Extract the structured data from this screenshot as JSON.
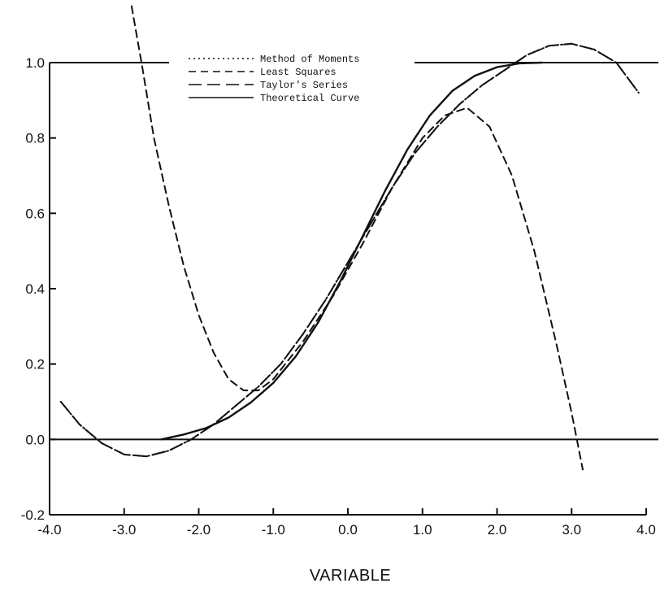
{
  "chart_data": {
    "type": "line",
    "title": "",
    "xlabel": "VARIABLE",
    "ylabel": "",
    "xlim": [
      -4.0,
      4.0
    ],
    "ylim": [
      -0.2,
      1.0
    ],
    "grid": false,
    "legend_position": "top-center",
    "x_ticks": [
      -4.0,
      -3.0,
      -2.0,
      -1.0,
      0.0,
      1.0,
      2.0,
      3.0,
      4.0
    ],
    "x_tick_labels": [
      "-4.0",
      "-3.0",
      "-2.0",
      "-1.0",
      "0.0",
      "1.0",
      "2.0",
      "3.0",
      "4.0"
    ],
    "y_ticks": [
      -0.2,
      0.0,
      0.2,
      0.4,
      0.6,
      0.8,
      1.0
    ],
    "y_tick_labels": [
      "-0.2",
      "0.0",
      "0.2",
      "0.4",
      "0.6",
      "0.8",
      "1.0"
    ],
    "reference_lines": [
      {
        "axis": "y",
        "value": 0.0
      },
      {
        "axis": "y",
        "value": 1.0
      }
    ],
    "series": [
      {
        "name": "Method of Moments",
        "dash": "dotted",
        "x": [
          -3.85,
          -3.6,
          -3.3,
          -3.0,
          -2.7,
          -2.4,
          -2.1,
          -1.8,
          -1.5,
          -1.2,
          -0.9,
          -0.6,
          -0.3,
          0.0,
          0.3,
          0.6,
          0.9,
          1.2,
          1.5,
          1.8,
          2.1,
          2.4,
          2.7,
          3.0,
          3.3,
          3.6,
          3.9
        ],
        "y": [
          0.1,
          0.04,
          -0.01,
          -0.04,
          -0.045,
          -0.03,
          0.0,
          0.04,
          0.09,
          0.14,
          0.2,
          0.28,
          0.37,
          0.47,
          0.57,
          0.67,
          0.76,
          0.83,
          0.89,
          0.94,
          0.98,
          1.02,
          1.045,
          1.05,
          1.035,
          1.0,
          0.92
        ]
      },
      {
        "name": "Least Squares",
        "dash": "dashed",
        "x": [
          -2.9,
          -2.75,
          -2.6,
          -2.4,
          -2.2,
          -2.0,
          -1.8,
          -1.6,
          -1.4,
          -1.2,
          -1.0,
          -0.6,
          -0.2,
          0.2,
          0.6,
          1.0,
          1.3,
          1.6,
          1.9,
          2.2,
          2.5,
          2.8,
          3.0,
          3.15
        ],
        "y": [
          1.15,
          0.98,
          0.8,
          0.62,
          0.46,
          0.33,
          0.23,
          0.16,
          0.13,
          0.13,
          0.16,
          0.26,
          0.38,
          0.52,
          0.67,
          0.8,
          0.86,
          0.88,
          0.83,
          0.7,
          0.5,
          0.25,
          0.07,
          -0.08
        ]
      },
      {
        "name": "Taylor's Series",
        "dash": "longdash",
        "x": [
          -3.85,
          -3.6,
          -3.3,
          -3.0,
          -2.7,
          -2.4,
          -2.1,
          -1.8,
          -1.5,
          -1.2,
          -0.9,
          -0.6,
          -0.3,
          0.0,
          0.3,
          0.6,
          0.9,
          1.2,
          1.5,
          1.8,
          2.1,
          2.4,
          2.7,
          3.0,
          3.3,
          3.6,
          3.9
        ],
        "y": [
          0.1,
          0.04,
          -0.01,
          -0.04,
          -0.045,
          -0.03,
          0.0,
          0.04,
          0.09,
          0.14,
          0.2,
          0.28,
          0.37,
          0.47,
          0.57,
          0.67,
          0.76,
          0.83,
          0.89,
          0.94,
          0.98,
          1.02,
          1.045,
          1.05,
          1.035,
          1.0,
          0.92
        ]
      },
      {
        "name": "Theoretical Curve",
        "dash": "solid",
        "x": [
          -2.5,
          -2.2,
          -1.9,
          -1.6,
          -1.3,
          -1.0,
          -0.7,
          -0.4,
          -0.1,
          0.2,
          0.5,
          0.8,
          1.1,
          1.4,
          1.7,
          2.0,
          2.3,
          2.6
        ],
        "y": [
          0.0,
          0.013,
          0.03,
          0.058,
          0.098,
          0.15,
          0.22,
          0.31,
          0.42,
          0.54,
          0.66,
          0.77,
          0.86,
          0.925,
          0.965,
          0.988,
          0.998,
          1.0
        ]
      }
    ],
    "colors": {
      "line": "#111111",
      "background": "#ffffff"
    }
  }
}
